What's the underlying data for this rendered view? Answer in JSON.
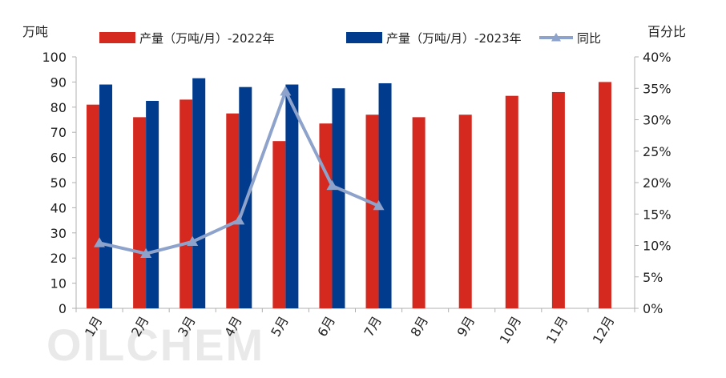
{
  "watermark": "OILCHEM",
  "chart_data": {
    "type": "bar",
    "categories": [
      "1月",
      "2月",
      "3月",
      "4月",
      "5月",
      "6月",
      "7月",
      "8月",
      "9月",
      "10月",
      "11月",
      "12月"
    ],
    "left_axis_unit": "万吨",
    "right_axis_unit": "百分比",
    "ylim": [
      0,
      100
    ],
    "y_ticks": [
      0,
      10,
      20,
      30,
      40,
      50,
      60,
      70,
      80,
      90,
      100
    ],
    "y2lim": [
      0,
      40
    ],
    "y2_ticks": [
      "0%",
      "5%",
      "10%",
      "15%",
      "20%",
      "25%",
      "30%",
      "35%",
      "40%"
    ],
    "grid": false,
    "legend_position": "top",
    "series": [
      {
        "name": "产量（万吨/月）-2022年",
        "kind": "bar",
        "color": "#d5281e",
        "values": [
          81,
          76,
          83,
          77.5,
          66.5,
          73.5,
          77,
          76,
          77,
          84.5,
          86,
          90
        ]
      },
      {
        "name": "产量（万吨/月）-2023年",
        "kind": "bar",
        "color": "#003b8e",
        "values": [
          89,
          82.5,
          91.5,
          88,
          89,
          87.5,
          89.5,
          null,
          null,
          null,
          null,
          null
        ]
      },
      {
        "name": "同比",
        "kind": "line",
        "axis": "right",
        "color": "#8ea3cb",
        "values": [
          10.4,
          8.7,
          10.6,
          14,
          34.5,
          19.5,
          16.3,
          null,
          null,
          null,
          null,
          null
        ]
      }
    ]
  }
}
